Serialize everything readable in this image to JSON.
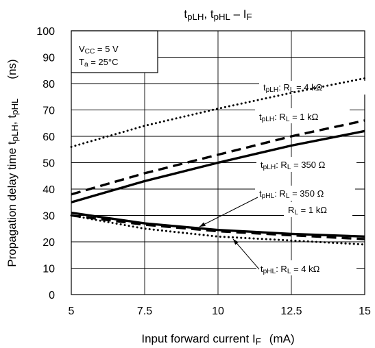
{
  "chart_data": {
    "type": "line",
    "title": {
      "parts": [
        {
          "t": "t",
          "s": ""
        },
        {
          "t": "pLH",
          "s": "sub"
        },
        {
          "t": ", t",
          "s": ""
        },
        {
          "t": "pHL",
          "s": "sub"
        },
        {
          "t": " – I",
          "s": ""
        },
        {
          "t": "F",
          "s": "sub"
        }
      ]
    },
    "xlabel": {
      "text": "Input forward current",
      "symbol": "I",
      "symbol_sub": "F",
      "unit": "(mA)"
    },
    "ylabel": {
      "text": "Propagation delay time",
      "symbol": "t",
      "sub1": "pLH",
      "mid": ", t",
      "sub2": "pHL",
      "unit": "(ns)"
    },
    "xlim": [
      5,
      15
    ],
    "ylim": [
      0,
      100
    ],
    "x_ticks": [
      "5",
      "7.5",
      "10",
      "12.5",
      "15"
    ],
    "y_ticks": [
      "0",
      "10",
      "20",
      "30",
      "40",
      "50",
      "60",
      "70",
      "80",
      "90",
      "100"
    ],
    "grid": true,
    "conditions": {
      "line1": {
        "pre": "V",
        "sub": "CC",
        "post": " = 5 V"
      },
      "line2": {
        "pre": "T",
        "sub": "a",
        "post": " = 25°C"
      }
    },
    "series": [
      {
        "name": "tpLH: RL = 4 kΩ",
        "style": "dotted",
        "x": [
          5,
          7.5,
          10,
          12.5,
          15
        ],
        "y": [
          56,
          64,
          70.5,
          76.5,
          82
        ]
      },
      {
        "name": "tpLH: RL = 1 kΩ",
        "style": "dashed",
        "x": [
          5,
          7.5,
          10,
          12.5,
          15
        ],
        "y": [
          38,
          46,
          53,
          60,
          66
        ]
      },
      {
        "name": "tpLH: RL = 350 Ω",
        "style": "solid",
        "x": [
          5,
          7.5,
          10,
          12.5,
          15
        ],
        "y": [
          35,
          43,
          50,
          56.5,
          62
        ]
      },
      {
        "name": "tpHL: RL = 350 Ω",
        "style": "solid",
        "x": [
          5,
          7.5,
          10,
          12.5,
          15
        ],
        "y": [
          31,
          27,
          24.5,
          23,
          22
        ]
      },
      {
        "name": "tpHL: RL = 1 kΩ",
        "style": "dashed",
        "x": [
          5,
          7.5,
          10,
          12.5,
          15
        ],
        "y": [
          30,
          26.5,
          24,
          22.5,
          21
        ]
      },
      {
        "name": "tpHL: RL = 4 kΩ",
        "style": "dotted",
        "x": [
          5,
          7.5,
          10,
          12.5,
          15
        ],
        "y": [
          30,
          25,
          22,
          20.5,
          19
        ]
      }
    ],
    "annotations": [
      {
        "parts": [
          {
            "t": "t",
            "s": ""
          },
          {
            "t": "pLH",
            "s": "sub"
          },
          {
            "t": ": R",
            "s": ""
          },
          {
            "t": "L",
            "s": "sub"
          },
          {
            "t": " = 4 kΩ",
            "s": ""
          }
        ]
      },
      {
        "parts": [
          {
            "t": "t",
            "s": ""
          },
          {
            "t": "pLH",
            "s": "sub"
          },
          {
            "t": ": R",
            "s": ""
          },
          {
            "t": "L",
            "s": "sub"
          },
          {
            "t": " = 1 kΩ",
            "s": ""
          }
        ]
      },
      {
        "parts": [
          {
            "t": "t",
            "s": ""
          },
          {
            "t": "pLH",
            "s": "sub"
          },
          {
            "t": ": R",
            "s": ""
          },
          {
            "t": "L",
            "s": "sub"
          },
          {
            "t": " = 350 Ω",
            "s": ""
          }
        ]
      },
      {
        "parts": [
          {
            "t": "t",
            "s": ""
          },
          {
            "t": "pHL",
            "s": "sub"
          },
          {
            "t": ": R",
            "s": ""
          },
          {
            "t": "L",
            "s": "sub"
          },
          {
            "t": " = 350 Ω",
            "s": ""
          }
        ]
      },
      {
        "parts": [
          {
            "t": "R",
            "s": ""
          },
          {
            "t": "L",
            "s": "sub"
          },
          {
            "t": " = 1 kΩ",
            "s": ""
          }
        ]
      },
      {
        "parts": [
          {
            "t": "t",
            "s": ""
          },
          {
            "t": "pHL",
            "s": "sub"
          },
          {
            "t": ": R",
            "s": ""
          },
          {
            "t": "L",
            "s": "sub"
          },
          {
            "t": " = 4 kΩ",
            "s": ""
          }
        ]
      }
    ]
  }
}
